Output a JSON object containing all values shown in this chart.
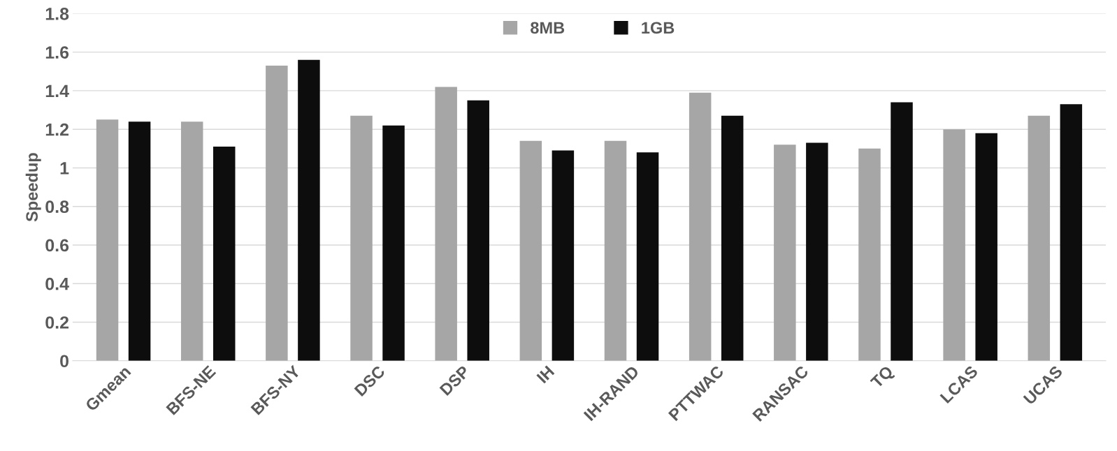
{
  "chart_data": {
    "type": "bar",
    "ylabel": "Speedup",
    "categories": [
      "Gmean",
      "BFS-NE",
      "BFS-NY",
      "DSC",
      "DSP",
      "IH",
      "IH-RAND",
      "PTTWAC",
      "RANSAC",
      "TQ",
      "LCAS",
      "UCAS"
    ],
    "series": [
      {
        "name": "8MB",
        "color": "#a6a6a6",
        "values": [
          1.25,
          1.24,
          1.53,
          1.27,
          1.42,
          1.14,
          1.14,
          1.39,
          1.12,
          1.1,
          1.2,
          1.27
        ]
      },
      {
        "name": "1GB",
        "color": "#0d0d0d",
        "values": [
          1.24,
          1.11,
          1.56,
          1.22,
          1.35,
          1.09,
          1.08,
          1.27,
          1.13,
          1.34,
          1.18,
          1.33
        ]
      }
    ],
    "ylim": [
      0,
      1.8
    ],
    "yticks": [
      0,
      0.2,
      0.4,
      0.6,
      0.8,
      1,
      1.2,
      1.4,
      1.6,
      1.8
    ],
    "grid": "y",
    "legend": "top"
  }
}
